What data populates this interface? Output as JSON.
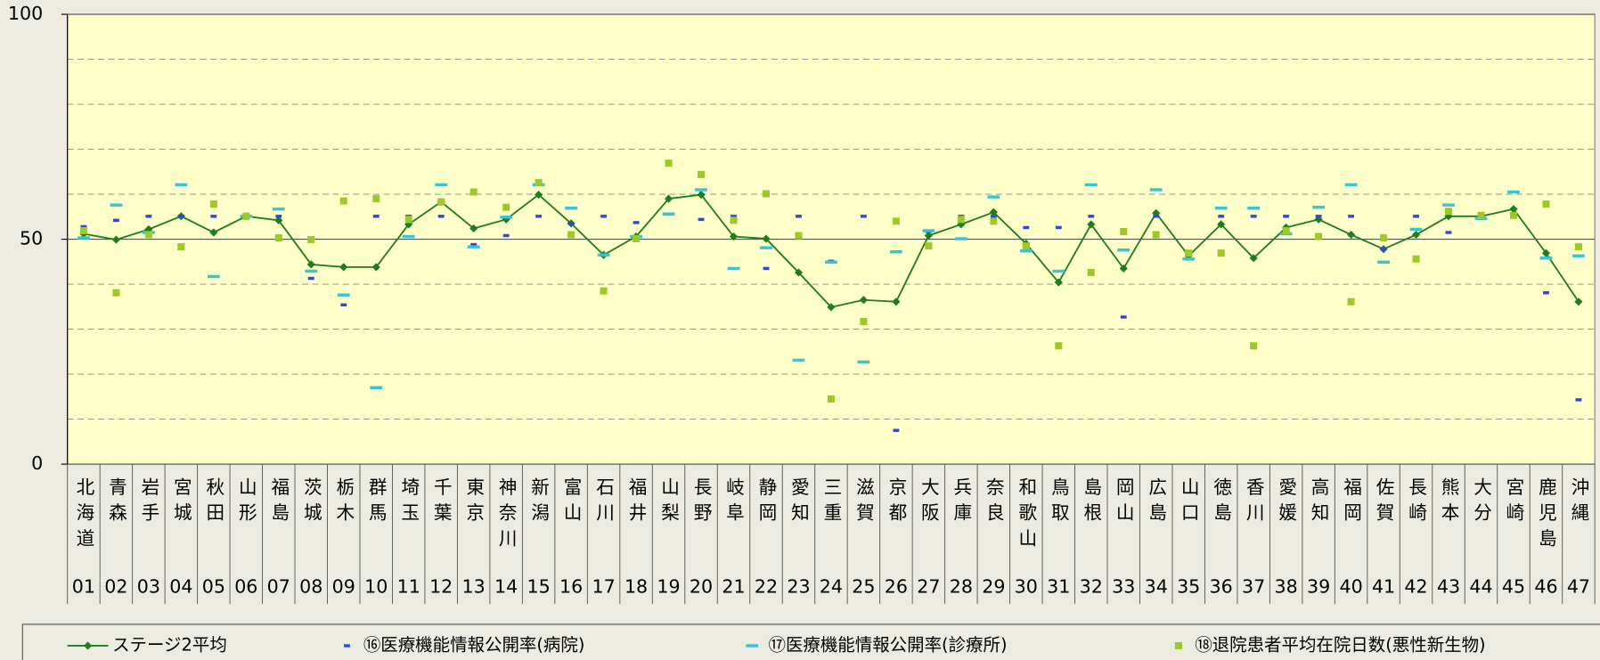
{
  "chart_data": {
    "type": "line",
    "categories": [
      "北海道",
      "青森",
      "岩手",
      "宮城",
      "秋田",
      "山形",
      "福島",
      "茨城",
      "栃木",
      "群馬",
      "埼玉",
      "千葉",
      "東京",
      "神奈川",
      "新潟",
      "富山",
      "石川",
      "福井",
      "山梨",
      "長野",
      "岐阜",
      "静岡",
      "愛知",
      "三重",
      "滋賀",
      "京都",
      "大阪",
      "兵庫",
      "奈良",
      "和歌山",
      "鳥取",
      "島根",
      "岡山",
      "広島",
      "山口",
      "徳島",
      "香川",
      "愛媛",
      "高知",
      "福岡",
      "佐賀",
      "長崎",
      "熊本",
      "大分",
      "宮崎",
      "鹿児島",
      "沖縄"
    ],
    "codes": [
      "01",
      "02",
      "03",
      "04",
      "05",
      "06",
      "07",
      "08",
      "09",
      "10",
      "11",
      "12",
      "13",
      "14",
      "15",
      "16",
      "17",
      "18",
      "19",
      "20",
      "21",
      "22",
      "23",
      "24",
      "25",
      "26",
      "27",
      "28",
      "29",
      "30",
      "31",
      "32",
      "33",
      "34",
      "35",
      "36",
      "37",
      "38",
      "39",
      "40",
      "41",
      "42",
      "43",
      "44",
      "45",
      "46",
      "47"
    ],
    "ylim": [
      0,
      100
    ],
    "yticks": [
      0,
      50,
      100
    ],
    "minor_yticks": [
      10,
      20,
      30,
      40,
      60,
      70,
      80,
      90
    ],
    "grid": true,
    "series": [
      {
        "name": "ステージ2平均",
        "color": "#1e7d1e",
        "mark": "line",
        "values": [
          51.2,
          49.9,
          52.2,
          55.1,
          51.5,
          55.1,
          54.2,
          44.4,
          43.8,
          43.8,
          53.3,
          58.3,
          52.4,
          54.4,
          59.9,
          53.5,
          46.5,
          50.6,
          59.0,
          59.9,
          50.6,
          50.1,
          42.6,
          34.9,
          36.5,
          36.1,
          50.8,
          53.3,
          56.0,
          49.0,
          40.4,
          53.3,
          43.5,
          55.8,
          46.3,
          53.3,
          45.8,
          52.6,
          54.4,
          51.0,
          47.8,
          51.0,
          55.1,
          55.1,
          56.7,
          46.9,
          36.1
        ]
      },
      {
        "name": "⑯医療機能情報公開率(病院)",
        "color": "#3048d8",
        "mark": "dash",
        "values": [
          52.8,
          54.2,
          55.1,
          55.1,
          55.1,
          55.1,
          55.1,
          41.3,
          35.4,
          55.1,
          55.1,
          55.1,
          48.8,
          50.8,
          55.1,
          53.5,
          55.1,
          53.7,
          55.6,
          54.4,
          55.1,
          43.5,
          55.1,
          45.1,
          55.1,
          7.5,
          51.7,
          55.1,
          55.1,
          52.6,
          52.6,
          55.1,
          32.7,
          55.1,
          45.6,
          55.1,
          55.1,
          55.1,
          55.1,
          55.1,
          47.8,
          55.1,
          51.5,
          55.1,
          55.1,
          38.1,
          14.3
        ]
      },
      {
        "name": "⑰医療機能情報公開率(診療所)",
        "color": "#38c4d4",
        "mark": "dash",
        "values": [
          50.3,
          57.6,
          51.5,
          62.1,
          41.7,
          55.1,
          56.7,
          42.9,
          37.6,
          17.0,
          50.6,
          62.1,
          48.3,
          54.9,
          62.1,
          56.9,
          46.5,
          50.6,
          55.6,
          61.0,
          43.5,
          48.1,
          23.1,
          44.9,
          22.7,
          47.2,
          51.9,
          50.1,
          59.4,
          47.4,
          42.9,
          62.1,
          47.6,
          61.0,
          45.6,
          56.9,
          56.9,
          51.2,
          57.1,
          62.1,
          44.9,
          52.2,
          57.6,
          54.6,
          60.5,
          45.8,
          46.3
        ]
      },
      {
        "name": "⑱退院患者平均在院日数(悪性新生物)",
        "color": "#9cc828",
        "mark": "square",
        "values": [
          51.9,
          38.1,
          51.0,
          48.3,
          57.8,
          55.1,
          50.3,
          49.9,
          58.5,
          59.0,
          54.4,
          58.3,
          60.5,
          57.1,
          62.6,
          51.0,
          38.5,
          50.1,
          66.9,
          64.4,
          54.2,
          60.1,
          50.8,
          14.5,
          31.7,
          54.0,
          48.5,
          54.4,
          54.0,
          48.5,
          26.3,
          42.6,
          51.7,
          51.0,
          46.9,
          46.9,
          26.3,
          51.9,
          50.6,
          36.1,
          50.3,
          45.6,
          56.2,
          55.3,
          55.3,
          57.8,
          48.3
        ]
      }
    ]
  }
}
